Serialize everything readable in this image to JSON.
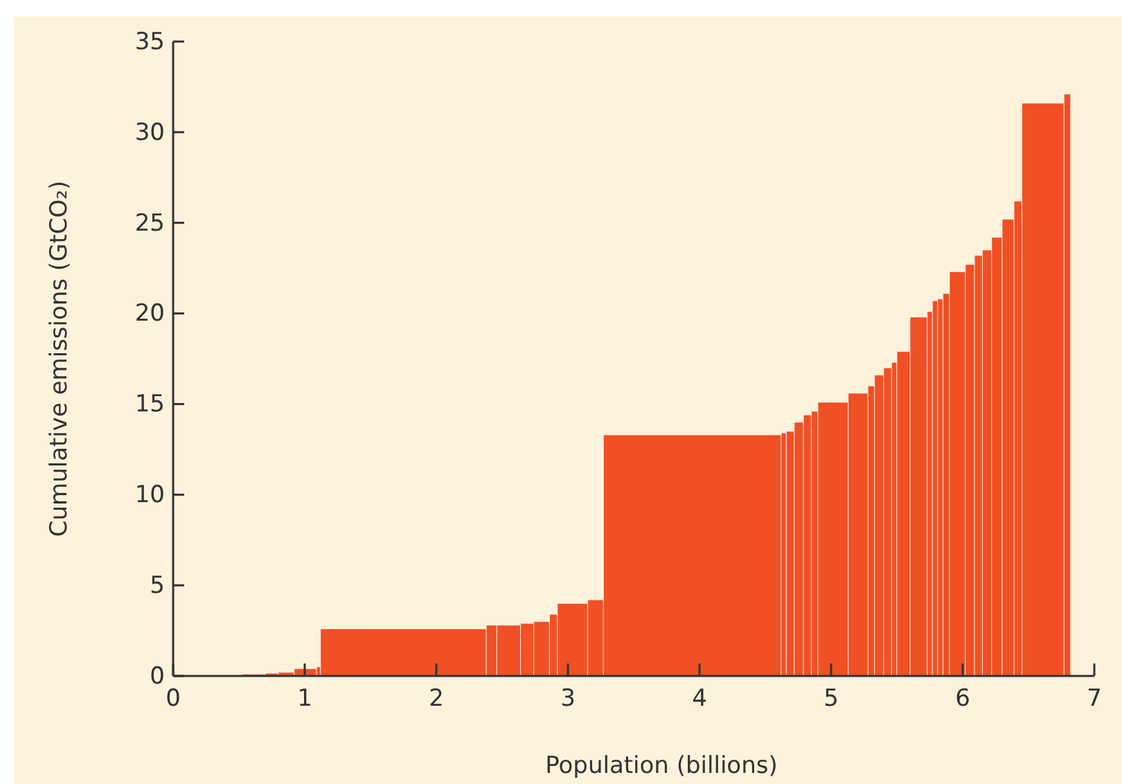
{
  "chart_data": {
    "type": "histogram",
    "xlabel": "Population (billions)",
    "ylabel": "Cumulative emissions (GtCO₂)",
    "color": "#f05023",
    "bins": [
      0.53,
      0.7,
      0.8,
      0.92,
      1.09,
      1.12,
      2.38,
      2.46,
      2.64,
      2.74,
      2.86,
      2.92,
      3.15,
      3.27,
      4.62,
      4.66,
      4.72,
      4.79,
      4.85,
      4.9,
      5.13,
      5.28,
      5.33,
      5.4,
      5.46,
      5.5,
      5.6,
      5.73,
      5.77,
      5.81,
      5.85,
      5.9,
      6.02,
      6.09,
      6.15,
      6.22,
      6.3,
      6.39,
      6.45,
      6.77,
      6.82
    ],
    "values": [
      0.1,
      0.15,
      0.2,
      0.4,
      0.5,
      2.6,
      2.8,
      2.8,
      2.9,
      3.0,
      3.4,
      4.0,
      4.2,
      13.3,
      13.4,
      13.5,
      14.0,
      14.4,
      14.6,
      15.1,
      15.6,
      16.0,
      16.6,
      17.0,
      17.3,
      17.9,
      19.8,
      20.1,
      20.7,
      20.8,
      21.1,
      22.3,
      22.7,
      23.2,
      23.5,
      24.2,
      25.2,
      26.2,
      31.6,
      32.1
    ],
    "xlim": [
      0,
      7
    ],
    "xticks": [
      0,
      1,
      2,
      3,
      4,
      5,
      6,
      7
    ],
    "ylim": [
      0,
      35
    ],
    "yticks": [
      0,
      5,
      10,
      15,
      20,
      25,
      30,
      35
    ]
  }
}
